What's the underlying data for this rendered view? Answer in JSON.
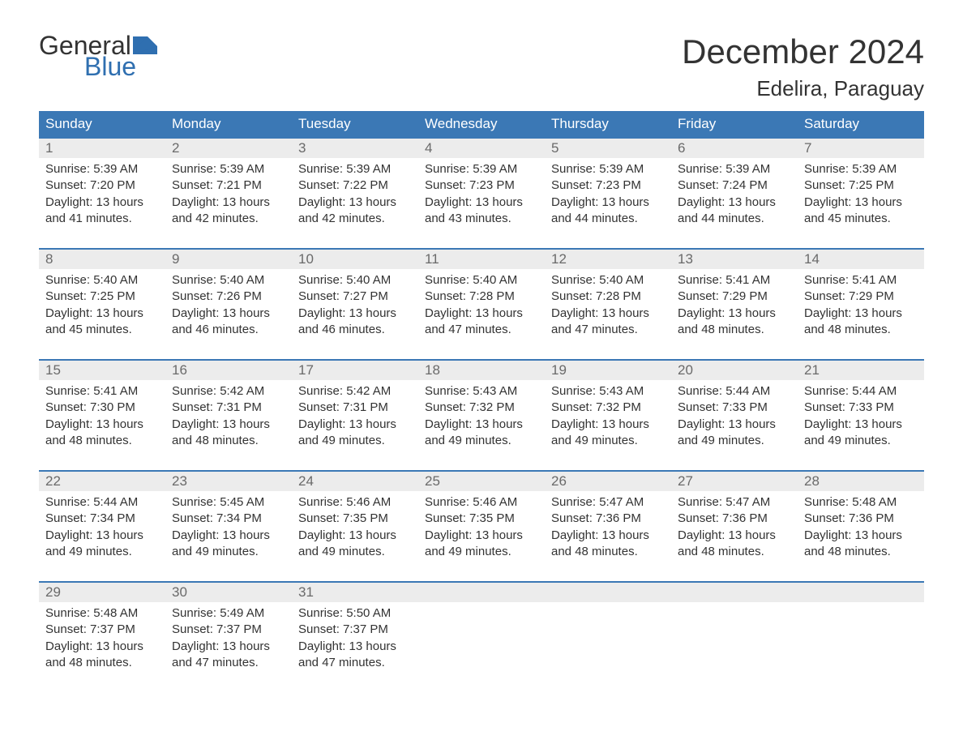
{
  "brand": {
    "general": "General",
    "blue": "Blue",
    "flag_color": "#2f6fb0"
  },
  "title": "December 2024",
  "location": "Edelira, Paraguay",
  "theme": {
    "header_bg": "#3b78b5",
    "header_text": "#ffffff",
    "daynum_bg": "#ececec",
    "daynum_text": "#6a6a6a",
    "body_text": "#333333",
    "week_border": "#3b78b5",
    "page_bg": "#ffffff"
  },
  "day_names": [
    "Sunday",
    "Monday",
    "Tuesday",
    "Wednesday",
    "Thursday",
    "Friday",
    "Saturday"
  ],
  "labels": {
    "sunrise": "Sunrise: ",
    "sunset": "Sunset: ",
    "daylight_prefix": "Daylight: ",
    "daylight_suffix": " minutes."
  },
  "weeks": [
    [
      {
        "n": "1",
        "sunrise": "5:39 AM",
        "sunset": "7:20 PM",
        "daylight": "13 hours and 41"
      },
      {
        "n": "2",
        "sunrise": "5:39 AM",
        "sunset": "7:21 PM",
        "daylight": "13 hours and 42"
      },
      {
        "n": "3",
        "sunrise": "5:39 AM",
        "sunset": "7:22 PM",
        "daylight": "13 hours and 42"
      },
      {
        "n": "4",
        "sunrise": "5:39 AM",
        "sunset": "7:23 PM",
        "daylight": "13 hours and 43"
      },
      {
        "n": "5",
        "sunrise": "5:39 AM",
        "sunset": "7:23 PM",
        "daylight": "13 hours and 44"
      },
      {
        "n": "6",
        "sunrise": "5:39 AM",
        "sunset": "7:24 PM",
        "daylight": "13 hours and 44"
      },
      {
        "n": "7",
        "sunrise": "5:39 AM",
        "sunset": "7:25 PM",
        "daylight": "13 hours and 45"
      }
    ],
    [
      {
        "n": "8",
        "sunrise": "5:40 AM",
        "sunset": "7:25 PM",
        "daylight": "13 hours and 45"
      },
      {
        "n": "9",
        "sunrise": "5:40 AM",
        "sunset": "7:26 PM",
        "daylight": "13 hours and 46"
      },
      {
        "n": "10",
        "sunrise": "5:40 AM",
        "sunset": "7:27 PM",
        "daylight": "13 hours and 46"
      },
      {
        "n": "11",
        "sunrise": "5:40 AM",
        "sunset": "7:28 PM",
        "daylight": "13 hours and 47"
      },
      {
        "n": "12",
        "sunrise": "5:40 AM",
        "sunset": "7:28 PM",
        "daylight": "13 hours and 47"
      },
      {
        "n": "13",
        "sunrise": "5:41 AM",
        "sunset": "7:29 PM",
        "daylight": "13 hours and 48"
      },
      {
        "n": "14",
        "sunrise": "5:41 AM",
        "sunset": "7:29 PM",
        "daylight": "13 hours and 48"
      }
    ],
    [
      {
        "n": "15",
        "sunrise": "5:41 AM",
        "sunset": "7:30 PM",
        "daylight": "13 hours and 48"
      },
      {
        "n": "16",
        "sunrise": "5:42 AM",
        "sunset": "7:31 PM",
        "daylight": "13 hours and 48"
      },
      {
        "n": "17",
        "sunrise": "5:42 AM",
        "sunset": "7:31 PM",
        "daylight": "13 hours and 49"
      },
      {
        "n": "18",
        "sunrise": "5:43 AM",
        "sunset": "7:32 PM",
        "daylight": "13 hours and 49"
      },
      {
        "n": "19",
        "sunrise": "5:43 AM",
        "sunset": "7:32 PM",
        "daylight": "13 hours and 49"
      },
      {
        "n": "20",
        "sunrise": "5:44 AM",
        "sunset": "7:33 PM",
        "daylight": "13 hours and 49"
      },
      {
        "n": "21",
        "sunrise": "5:44 AM",
        "sunset": "7:33 PM",
        "daylight": "13 hours and 49"
      }
    ],
    [
      {
        "n": "22",
        "sunrise": "5:44 AM",
        "sunset": "7:34 PM",
        "daylight": "13 hours and 49"
      },
      {
        "n": "23",
        "sunrise": "5:45 AM",
        "sunset": "7:34 PM",
        "daylight": "13 hours and 49"
      },
      {
        "n": "24",
        "sunrise": "5:46 AM",
        "sunset": "7:35 PM",
        "daylight": "13 hours and 49"
      },
      {
        "n": "25",
        "sunrise": "5:46 AM",
        "sunset": "7:35 PM",
        "daylight": "13 hours and 49"
      },
      {
        "n": "26",
        "sunrise": "5:47 AM",
        "sunset": "7:36 PM",
        "daylight": "13 hours and 48"
      },
      {
        "n": "27",
        "sunrise": "5:47 AM",
        "sunset": "7:36 PM",
        "daylight": "13 hours and 48"
      },
      {
        "n": "28",
        "sunrise": "5:48 AM",
        "sunset": "7:36 PM",
        "daylight": "13 hours and 48"
      }
    ],
    [
      {
        "n": "29",
        "sunrise": "5:48 AM",
        "sunset": "7:37 PM",
        "daylight": "13 hours and 48"
      },
      {
        "n": "30",
        "sunrise": "5:49 AM",
        "sunset": "7:37 PM",
        "daylight": "13 hours and 47"
      },
      {
        "n": "31",
        "sunrise": "5:50 AM",
        "sunset": "7:37 PM",
        "daylight": "13 hours and 47"
      },
      null,
      null,
      null,
      null
    ]
  ]
}
